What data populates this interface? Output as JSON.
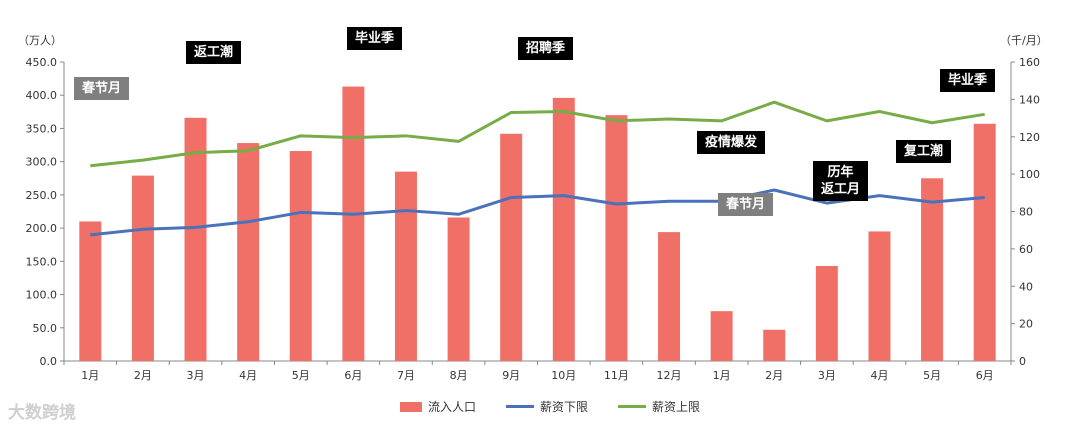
{
  "units": {
    "left": "（万人）",
    "right": "（千/月）"
  },
  "watermark": "大数跨境",
  "annotations": [
    {
      "text": "春节月",
      "style": "gray"
    },
    {
      "text": "返工潮",
      "style": "black"
    },
    {
      "text": "毕业季",
      "style": "black"
    },
    {
      "text": "招聘季",
      "style": "black"
    },
    {
      "text": "疫情爆发",
      "style": "black"
    },
    {
      "text": "春节月",
      "style": "gray"
    },
    {
      "text": "历年\n返工月",
      "style": "black"
    },
    {
      "text": "复工潮",
      "style": "black"
    },
    {
      "text": "毕业季",
      "style": "black"
    }
  ],
  "chart_data": {
    "type": "bar+line",
    "categories": [
      "1月",
      "2月",
      "3月",
      "4月",
      "5月",
      "6月",
      "7月",
      "8月",
      "9月",
      "10月",
      "11月",
      "12月",
      "1月",
      "2月",
      "3月",
      "4月",
      "5月",
      "6月"
    ],
    "left_axis": {
      "ticks": [
        "0.0",
        "50.0",
        "100.0",
        "150.0",
        "200.0",
        "250.0",
        "300.0",
        "350.0",
        "400.0",
        "450.0"
      ],
      "ylim": [
        0,
        450
      ]
    },
    "right_axis": {
      "ticks": [
        "0",
        "20",
        "40",
        "60",
        "80",
        "100",
        "120",
        "140",
        "160"
      ],
      "ylim": [
        0,
        160
      ]
    },
    "series": [
      {
        "name": "流入人口",
        "type": "bar",
        "axis": "left",
        "color": "#F07067",
        "values": [
          210,
          279,
          366,
          328,
          316,
          413,
          285,
          216,
          342,
          396,
          370,
          194,
          75,
          47,
          143,
          195,
          275,
          357
        ]
      },
      {
        "name": "薪资下限",
        "type": "line",
        "axis": "right",
        "color": "#4A72BB",
        "values": [
          67.5,
          70.5,
          71.5,
          74.5,
          79.5,
          78.5,
          80.5,
          78.5,
          87.5,
          88.5,
          84,
          85.5,
          85.5,
          91.5,
          84.5,
          88.5,
          85,
          87.5
        ]
      },
      {
        "name": "薪资上限",
        "type": "line",
        "axis": "right",
        "color": "#77AC46",
        "values": [
          104.5,
          107.5,
          111.5,
          112.5,
          120.5,
          119.5,
          120.5,
          117.5,
          133,
          133.5,
          128.5,
          129.5,
          128.5,
          138.5,
          128.5,
          133.5,
          127.5,
          132
        ]
      }
    ],
    "legend_position": "bottom",
    "grid": false
  }
}
